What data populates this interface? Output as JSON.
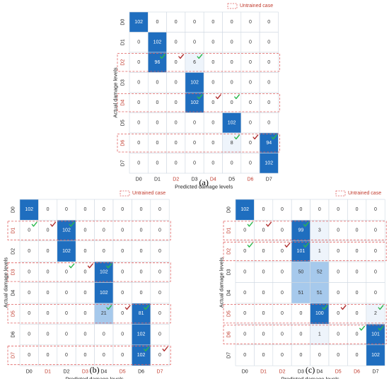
{
  "figure": {
    "legend_label": "Untrained case",
    "xlabel": "Predicted damage levels",
    "ylabel": "Actual damage levels",
    "colors": {
      "dark": "#1f6ebf",
      "light": "#a6c9ec",
      "grid": "#cfd8e2",
      "dash": "#e06060",
      "untrained_text": "#c0392b",
      "check_green": "#2bb84d",
      "check_red": "#b03030"
    }
  },
  "chart_data": [
    {
      "type": "heatmap",
      "panel_label": "(a)",
      "categories": [
        "D0",
        "D1",
        "D2",
        "D3",
        "D4",
        "D5",
        "D6",
        "D7"
      ],
      "untrained": [
        "D2",
        "D4",
        "D6"
      ],
      "xlabel": "Predicted damage levels",
      "ylabel": "Actual damage levels",
      "values": [
        [
          102,
          0,
          0,
          0,
          0,
          0,
          0,
          0
        ],
        [
          0,
          102,
          0,
          0,
          0,
          0,
          0,
          0
        ],
        [
          0,
          96,
          0,
          6,
          0,
          0,
          0,
          0
        ],
        [
          0,
          0,
          0,
          102,
          0,
          0,
          0,
          0
        ],
        [
          0,
          0,
          0,
          102,
          0,
          0,
          0,
          0
        ],
        [
          0,
          0,
          0,
          0,
          0,
          102,
          0,
          0
        ],
        [
          0,
          0,
          0,
          0,
          0,
          8,
          0,
          94
        ],
        [
          0,
          0,
          0,
          0,
          0,
          0,
          0,
          102
        ]
      ],
      "checks": [
        {
          "row": 2,
          "col": 1,
          "mark": "green"
        },
        {
          "row": 2,
          "col": 2,
          "mark": "red"
        },
        {
          "row": 2,
          "col": 3,
          "mark": "green"
        },
        {
          "row": 4,
          "col": 3,
          "mark": "green"
        },
        {
          "row": 4,
          "col": 4,
          "mark": "red"
        },
        {
          "row": 4,
          "col": 5,
          "mark": "green"
        },
        {
          "row": 6,
          "col": 5,
          "mark": "green"
        },
        {
          "row": 6,
          "col": 6,
          "mark": "red"
        },
        {
          "row": 6,
          "col": 7,
          "mark": "green"
        }
      ]
    },
    {
      "type": "heatmap",
      "panel_label": "(b)",
      "categories": [
        "D0",
        "D1",
        "D2",
        "D3",
        "D4",
        "D5",
        "D6",
        "D7"
      ],
      "untrained": [
        "D1",
        "D3",
        "D5",
        "D7"
      ],
      "xlabel": "Predicted damage levels",
      "ylabel": "Actual damage levels",
      "values": [
        [
          102,
          0,
          0,
          0,
          0,
          0,
          0,
          0
        ],
        [
          0,
          0,
          102,
          0,
          0,
          0,
          0,
          0
        ],
        [
          0,
          0,
          102,
          0,
          0,
          0,
          0,
          0
        ],
        [
          0,
          0,
          0,
          0,
          102,
          0,
          0,
          0
        ],
        [
          0,
          0,
          0,
          0,
          102,
          0,
          0,
          0
        ],
        [
          0,
          0,
          0,
          0,
          21,
          0,
          81,
          0
        ],
        [
          0,
          0,
          0,
          0,
          0,
          0,
          102,
          0
        ],
        [
          0,
          0,
          0,
          0,
          0,
          0,
          102,
          0
        ]
      ],
      "checks": [
        {
          "row": 1,
          "col": 0,
          "mark": "green"
        },
        {
          "row": 1,
          "col": 1,
          "mark": "red"
        },
        {
          "row": 1,
          "col": 2,
          "mark": "green"
        },
        {
          "row": 3,
          "col": 2,
          "mark": "green"
        },
        {
          "row": 3,
          "col": 3,
          "mark": "red"
        },
        {
          "row": 3,
          "col": 4,
          "mark": "green"
        },
        {
          "row": 5,
          "col": 4,
          "mark": "green"
        },
        {
          "row": 5,
          "col": 5,
          "mark": "red"
        },
        {
          "row": 5,
          "col": 6,
          "mark": "green"
        },
        {
          "row": 7,
          "col": 6,
          "mark": "green"
        },
        {
          "row": 7,
          "col": 7,
          "mark": "red"
        }
      ]
    },
    {
      "type": "heatmap",
      "panel_label": "(c)",
      "categories": [
        "D0",
        "D1",
        "D2",
        "D3",
        "D4",
        "D5",
        "D6",
        "D7"
      ],
      "untrained": [
        "D1",
        "D2",
        "D5",
        "D6"
      ],
      "xlabel": "Predicted damage levels",
      "ylabel": "Actual damage levels",
      "values": [
        [
          102,
          0,
          0,
          0,
          0,
          0,
          0,
          0
        ],
        [
          0,
          0,
          0,
          99,
          3,
          0,
          0,
          0
        ],
        [
          0,
          0,
          0,
          101,
          1,
          0,
          0,
          0
        ],
        [
          0,
          0,
          0,
          50,
          52,
          0,
          0,
          0
        ],
        [
          0,
          0,
          0,
          51,
          51,
          0,
          0,
          0
        ],
        [
          0,
          0,
          0,
          0,
          100,
          0,
          0,
          2
        ],
        [
          0,
          0,
          0,
          0,
          1,
          0,
          0,
          101
        ],
        [
          0,
          0,
          0,
          0,
          0,
          0,
          0,
          102
        ]
      ],
      "checks": [
        {
          "row": 1,
          "col": 0,
          "mark": "green"
        },
        {
          "row": 1,
          "col": 1,
          "mark": "red"
        },
        {
          "row": 1,
          "col": 3,
          "mark": "green"
        },
        {
          "row": 2,
          "col": 0,
          "mark": "green"
        },
        {
          "row": 2,
          "col": 2,
          "mark": "red"
        },
        {
          "row": 2,
          "col": 3,
          "mark": "green"
        },
        {
          "row": 5,
          "col": 4,
          "mark": "green"
        },
        {
          "row": 5,
          "col": 5,
          "mark": "red"
        },
        {
          "row": 5,
          "col": 7,
          "mark": "green"
        },
        {
          "row": 6,
          "col": 6,
          "mark": "green"
        },
        {
          "row": 6,
          "col": 7,
          "mark": "green"
        }
      ]
    }
  ]
}
